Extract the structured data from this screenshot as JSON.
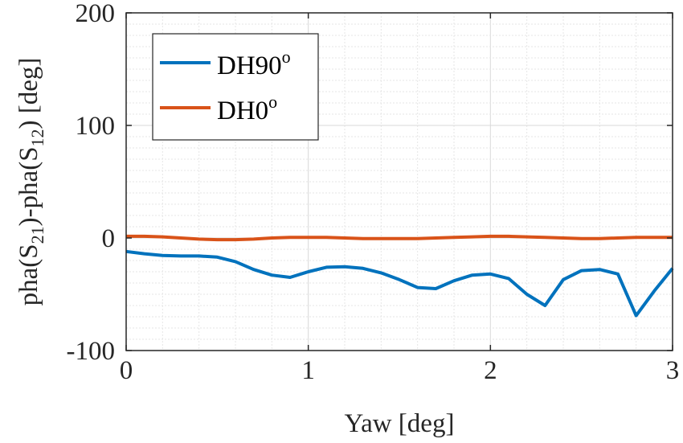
{
  "chart_data": {
    "type": "line",
    "title": "",
    "xlabel": "Yaw [deg]",
    "ylabel": {
      "prefix": "pha(S",
      "sub1": "21",
      "middle": ")-pha(S",
      "sub2": "12",
      "suffix": ") [deg]"
    },
    "xlim": [
      0,
      3
    ],
    "ylim": [
      -100,
      200
    ],
    "x_ticks": [
      0,
      1,
      2,
      3
    ],
    "x_tick_labels": [
      "0",
      "1",
      "2",
      "3"
    ],
    "y_ticks": [
      -100,
      0,
      100,
      200
    ],
    "y_tick_labels": [
      "-100",
      "0",
      "100",
      "200"
    ],
    "grid": true,
    "minor_grid": true,
    "legend_position": "top-left",
    "series": [
      {
        "name": "DH90",
        "name_sup": "o",
        "color": "#0072BD",
        "x": [
          0,
          0.1,
          0.2,
          0.3,
          0.4,
          0.5,
          0.6,
          0.7,
          0.8,
          0.9,
          1.0,
          1.1,
          1.2,
          1.3,
          1.4,
          1.5,
          1.6,
          1.7,
          1.8,
          1.9,
          2.0,
          2.1,
          2.2,
          2.3,
          2.4,
          2.5,
          2.6,
          2.7,
          2.8,
          2.9,
          3.0
        ],
        "y": [
          -12,
          -14,
          -15.5,
          -16,
          -16,
          -17,
          -21,
          -28,
          -33,
          -35,
          -30,
          -26,
          -25.5,
          -27,
          -31,
          -37,
          -44,
          -45,
          -38,
          -33,
          -32,
          -36,
          -50,
          -60,
          -37,
          -29,
          -28,
          -32,
          -69,
          -47,
          -27
        ]
      },
      {
        "name": "DH0",
        "name_sup": "o",
        "color": "#D95319",
        "x": [
          0,
          0.1,
          0.2,
          0.3,
          0.4,
          0.5,
          0.6,
          0.7,
          0.8,
          0.9,
          1.0,
          1.1,
          1.2,
          1.3,
          1.4,
          1.5,
          1.6,
          1.7,
          1.8,
          1.9,
          2.0,
          2.1,
          2.2,
          2.3,
          2.4,
          2.5,
          2.6,
          2.7,
          2.8,
          2.9,
          3.0
        ],
        "y": [
          1.5,
          1.5,
          1,
          0,
          -1,
          -1.5,
          -1.5,
          -1,
          0,
          0.5,
          0.5,
          0.5,
          0,
          -0.5,
          -0.5,
          -0.5,
          -0.5,
          0,
          0.5,
          1,
          1.5,
          1.5,
          1,
          0.5,
          0,
          -0.5,
          -0.5,
          0,
          0.5,
          0.5,
          0.5
        ]
      }
    ]
  }
}
